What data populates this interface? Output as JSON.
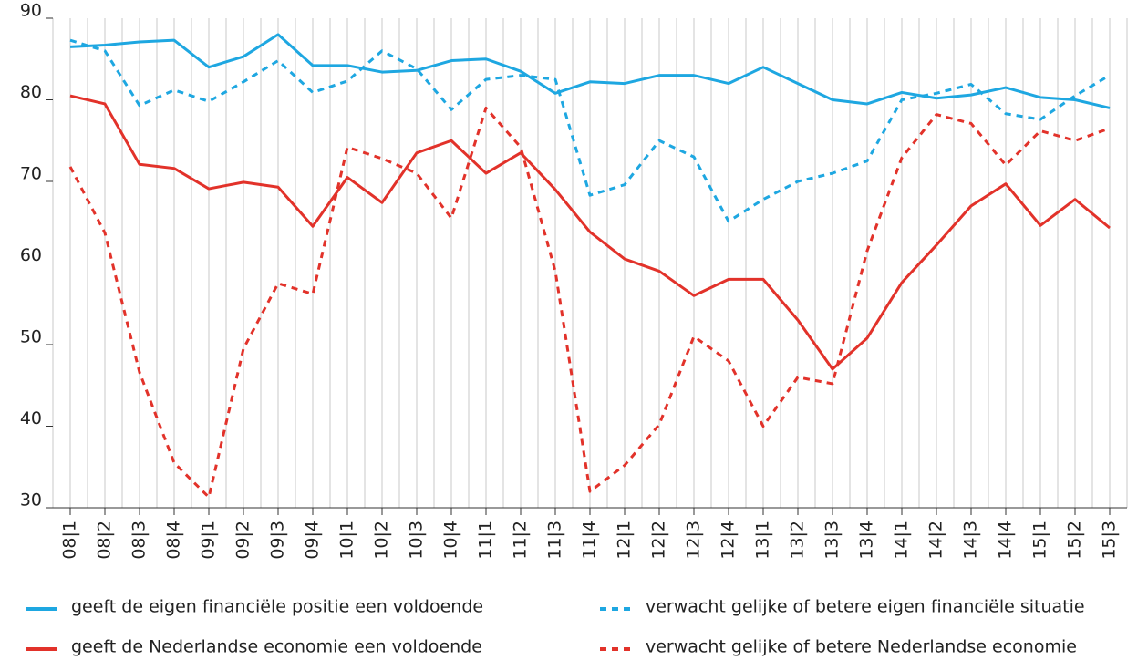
{
  "chart_data": {
    "type": "line",
    "categories": [
      "08|1",
      "08|2",
      "08|3",
      "08|4",
      "09|1",
      "09|2",
      "09|3",
      "09|4",
      "10|1",
      "10|2",
      "10|3",
      "10|4",
      "11|1",
      "11|2",
      "11|3",
      "11|4",
      "12|1",
      "12|2",
      "12|3",
      "12|4",
      "13|1",
      "13|2",
      "13|3",
      "13|4",
      "14|1",
      "14|2",
      "14|3",
      "14|4",
      "15|1",
      "15|2",
      "15|3"
    ],
    "series": [
      {
        "name": "geeft de eigen financiële positie een voldoende",
        "color": "#1ea7e1",
        "dashed": false,
        "values": [
          86.5,
          86.7,
          87.1,
          87.3,
          84,
          85.3,
          88,
          84.2,
          84.2,
          83.4,
          83.6,
          84.8,
          85,
          83.5,
          80.8,
          82.2,
          82,
          83,
          83,
          82,
          84,
          82,
          80,
          79.5,
          80.9,
          80.2,
          80.6,
          81.5,
          80.3,
          80,
          79
        ]
      },
      {
        "name": "verwacht gelijke of betere eigen financiële situatie",
        "color": "#1ea7e1",
        "dashed": true,
        "values": [
          87.3,
          86,
          79.3,
          81.2,
          79.8,
          82.2,
          84.8,
          80.9,
          82.3,
          86,
          83.8,
          78.8,
          82.5,
          83,
          82.5,
          68.3,
          69.6,
          75,
          73,
          65.1,
          67.8,
          70,
          71,
          72.5,
          80,
          80.8,
          81.9,
          78.3,
          77.6,
          80.5,
          83
        ]
      },
      {
        "name": "geeft de Nederlandse economie een voldoende",
        "color": "#e2322a",
        "dashed": false,
        "values": [
          80.5,
          79.5,
          72.1,
          71.6,
          69.1,
          69.9,
          69.3,
          64.5,
          70.5,
          67.4,
          73.5,
          75,
          71,
          73.5,
          69,
          63.8,
          60.5,
          59,
          56,
          58,
          58,
          53,
          47,
          50.8,
          57.6,
          62.2,
          67,
          69.7,
          64.6,
          67.8,
          64.3
        ]
      },
      {
        "name": "verwacht gelijke of betere Nederlandse economie",
        "color": "#e2322a",
        "dashed": true,
        "values": [
          71.8,
          63.7,
          46.6,
          35.5,
          31.3,
          49.5,
          57.5,
          56.2,
          74.2,
          72.8,
          71,
          65.5,
          79,
          74.2,
          59,
          32,
          35.2,
          40.2,
          51,
          48,
          40,
          46,
          45.2,
          61.5,
          72.9,
          78.2,
          77.1,
          72,
          76.2,
          75,
          76.5
        ]
      }
    ],
    "ylim": [
      30,
      90
    ],
    "yticks": [
      30,
      40,
      50,
      60,
      70,
      80,
      90
    ],
    "grid": true
  }
}
